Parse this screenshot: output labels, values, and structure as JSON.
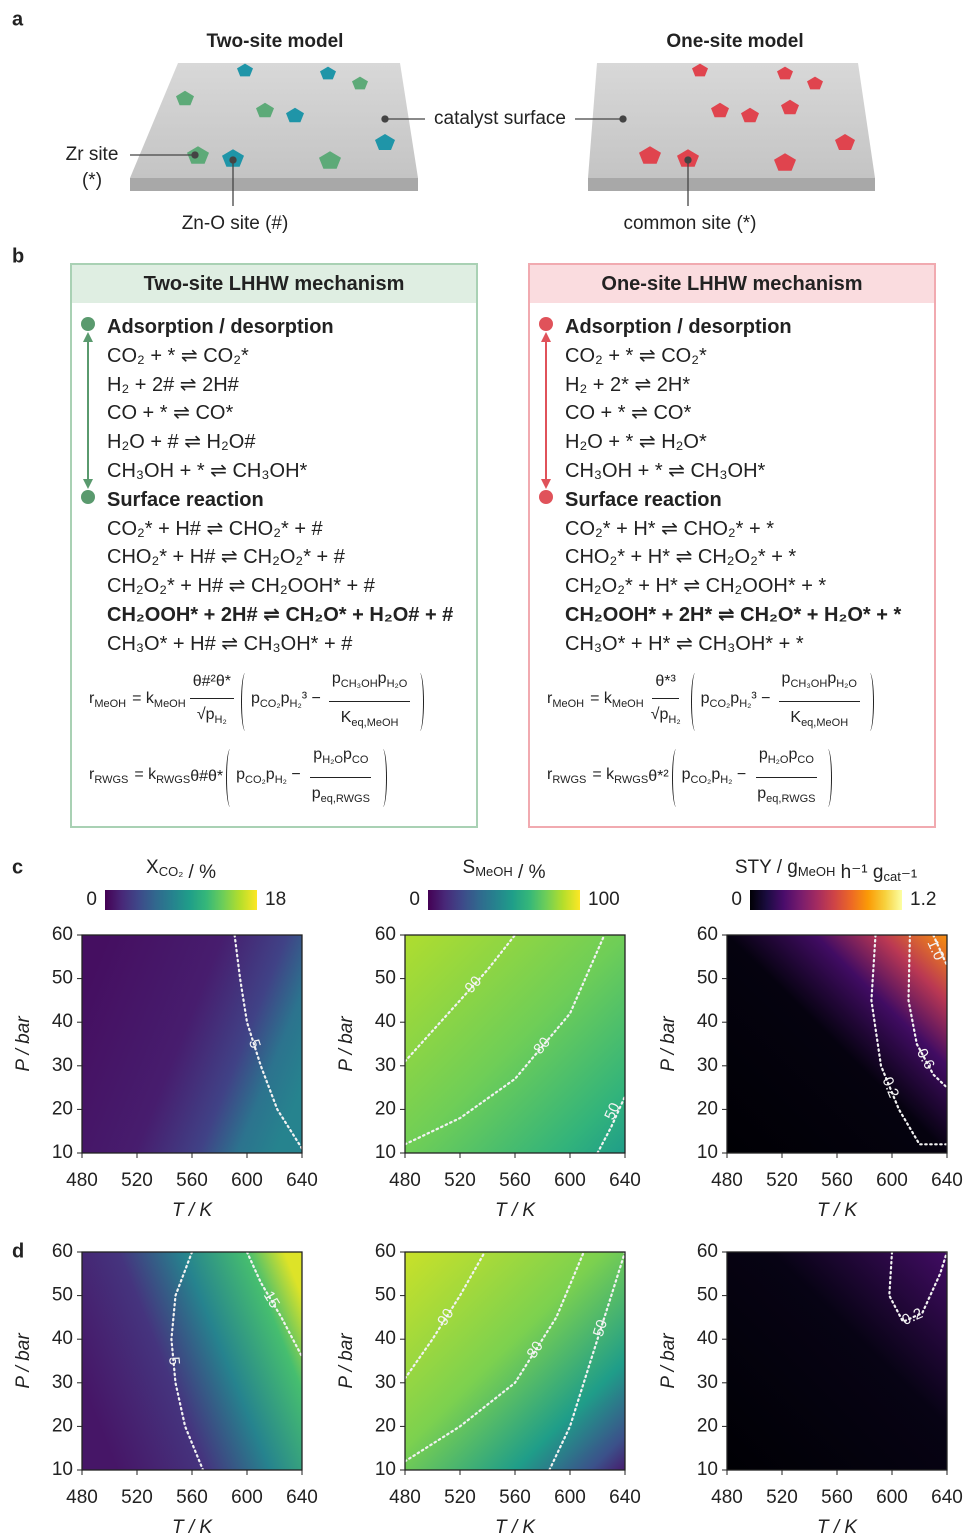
{
  "panel_labels": [
    "a",
    "b",
    "c",
    "d"
  ],
  "panel_a": {
    "left_title": "Two-site model",
    "right_title": "One-site model",
    "catalyst_surface": "catalyst surface",
    "zr_site": "Zr site",
    "zr_symbol": "(*)",
    "zno_site": "Zn-O site (#)",
    "common_site": "common site (*)"
  },
  "panel_b": {
    "boxes": [
      {
        "title": "Two-site LHHW mechanism",
        "color": "#5a9a6e",
        "header_color": "#dfeee2",
        "border_color": "#a9d1b4",
        "sections": [
          {
            "heading": "Adsorption / desorption",
            "equations": [
              "CO₂ + * ⇌ CO₂*",
              "H₂ + 2# ⇌ 2H#",
              "CO + * ⇌ CO*",
              "H₂O + # ⇌ H₂O#",
              "CH₃OH + * ⇌ CH₃OH*"
            ]
          },
          {
            "heading": "Surface reaction",
            "equations": [
              "CO₂* + H# ⇌ CHO₂* + #",
              "CHO₂* + H# ⇌ CH₂O₂* + #",
              "CH₂O₂* + H# ⇌ CH₂OOH* + #",
              "CH₂OOH* + 2H# ⇌ CH₂O* + H₂O# + #",
              "CH₃O* + H# ⇌ CH₃OH* + #"
            ],
            "bold_index": 3
          }
        ],
        "rates": [
          {
            "lhs": [
              [
                "r",
                "MeOH"
              ]
            ],
            "k": [
              [
                "= k",
                "MeOH"
              ]
            ],
            "num": [
              [
                "θ#²θ*"
              ]
            ],
            "den": [
              [
                "√p",
                "H₂"
              ]
            ],
            "term": [
              [
                "p",
                "CO₂"
              ],
              [
                "p",
                "H₂"
              ],
              [
                "³ −"
              ]
            ],
            "num2": [
              [
                "p",
                "CH₃OH"
              ],
              [
                "p",
                "H₂O"
              ]
            ],
            "den2": [
              [
                "K",
                "eq,MeOH"
              ]
            ]
          },
          {
            "lhs": [
              [
                "r",
                "RWGS"
              ]
            ],
            "k": [
              [
                "= k",
                "RWGS"
              ]
            ],
            "factor": [
              [
                "θ#θ*"
              ]
            ],
            "term": [
              [
                "p",
                "CO₂"
              ],
              [
                "p",
                "H₂"
              ],
              [
                " −"
              ]
            ],
            "num2": [
              [
                "p",
                "H₂O"
              ],
              [
                "p",
                "CO"
              ]
            ],
            "den2": [
              [
                "p",
                "eq,RWGS"
              ]
            ]
          }
        ]
      },
      {
        "title": "One-site LHHW mechanism",
        "color": "#e0525a",
        "header_color": "#fadcdf",
        "border_color": "#f1aab0",
        "sections": [
          {
            "heading": "Adsorption / desorption",
            "equations": [
              "CO₂ + * ⇌ CO₂*",
              "H₂ + 2* ⇌ 2H*",
              "CO + * ⇌ CO*",
              "H₂O + * ⇌ H₂O*",
              "CH₃OH + * ⇌ CH₃OH*"
            ]
          },
          {
            "heading": "Surface reaction",
            "equations": [
              "CO₂* + H* ⇌ CHO₂* + *",
              "CHO₂* + H* ⇌ CH₂O₂* + *",
              "CH₂O₂* + H* ⇌ CH₂OOH* + *",
              "CH₂OOH* + 2H* ⇌ CH₂O* + H₂O* + *",
              "CH₃O* + H* ⇌ CH₃OH* + *"
            ],
            "bold_index": 3
          }
        ],
        "rates": [
          {
            "lhs": [
              [
                "r",
                "MeOH"
              ]
            ],
            "k": [
              [
                "= k",
                "MeOH"
              ]
            ],
            "num": [
              [
                "θ*³"
              ]
            ],
            "den": [
              [
                "√p",
                "H₂"
              ]
            ],
            "term": [
              [
                "p",
                "CO₂"
              ],
              [
                "p",
                "H₂"
              ],
              [
                "³ −"
              ]
            ],
            "num2": [
              [
                "p",
                "CH₃OH"
              ],
              [
                "p",
                "H₂O"
              ]
            ],
            "den2": [
              [
                "K",
                "eq,MeOH"
              ]
            ]
          },
          {
            "lhs": [
              [
                "r",
                "RWGS"
              ]
            ],
            "k": [
              [
                "= k",
                "RWGS"
              ]
            ],
            "factor": [
              [
                "θ*²"
              ]
            ],
            "term": [
              [
                "p",
                "CO₂"
              ],
              [
                "p",
                "H₂"
              ],
              [
                " −"
              ]
            ],
            "num2": [
              [
                "p",
                "H₂O"
              ],
              [
                "p",
                "CO"
              ]
            ],
            "den2": [
              [
                "p",
                "eq,RWGS"
              ]
            ]
          }
        ]
      }
    ]
  },
  "chart_data": [
    {
      "type": "heatmap",
      "x_label": "T / K",
      "y_label": "P / bar",
      "xlim": [
        480,
        640
      ],
      "xticks": [
        480,
        520,
        560,
        600,
        640
      ],
      "ylim": [
        10,
        60
      ],
      "yticks": [
        10,
        20,
        30,
        40,
        50,
        60
      ],
      "colormap": [
        "#440154",
        "#482878",
        "#3e4989",
        "#31688e",
        "#26828e",
        "#1f9e89",
        "#35b779",
        "#6ece58",
        "#b5de2b",
        "#fde725"
      ],
      "colorbar": {
        "label": [
          [
            "X",
            "CO₂"
          ],
          [
            " / %"
          ]
        ],
        "lim": [
          0,
          18
        ],
        "ticks": [
          0,
          18
        ]
      },
      "contours": [
        {
          "level": 5,
          "x": [
            591,
            595,
            600,
            610,
            622,
            640
          ],
          "y": [
            60,
            50,
            40,
            30,
            20,
            11
          ]
        }
      ]
    },
    {
      "type": "heatmap",
      "x_label": "T / K",
      "y_label": "P / bar",
      "xlim": [
        480,
        640
      ],
      "xticks": [
        480,
        520,
        560,
        600,
        640
      ],
      "ylim": [
        10,
        60
      ],
      "yticks": [
        10,
        20,
        30,
        40,
        50,
        60
      ],
      "colormap": [
        "#440154",
        "#482878",
        "#3e4989",
        "#31688e",
        "#26828e",
        "#1f9e89",
        "#35b779",
        "#6ece58",
        "#b5de2b",
        "#fde725"
      ],
      "colorbar": {
        "label": [
          [
            "S",
            "MeOH"
          ],
          [
            " / %"
          ]
        ],
        "lim": [
          0,
          100
        ],
        "ticks": [
          0,
          100
        ]
      },
      "contours": [
        {
          "level": 90,
          "x": [
            480,
            500,
            520,
            540,
            560
          ],
          "y": [
            31,
            38,
            45,
            52,
            60
          ]
        },
        {
          "level": 80,
          "x": [
            480,
            520,
            560,
            600,
            625
          ],
          "y": [
            12,
            18,
            27,
            42,
            60
          ]
        },
        {
          "level": 50,
          "x": [
            620,
            630,
            640
          ],
          "y": [
            10,
            16,
            23
          ]
        }
      ]
    },
    {
      "type": "heatmap",
      "x_label": "T / K",
      "y_label": "P / bar",
      "xlim": [
        480,
        640
      ],
      "xticks": [
        480,
        520,
        560,
        600,
        640
      ],
      "ylim": [
        10,
        60
      ],
      "yticks": [
        10,
        20,
        30,
        40,
        50,
        60
      ],
      "colormap": [
        "#000004",
        "#1b0c41",
        "#4a0c6b",
        "#781c6d",
        "#a52c60",
        "#cf4446",
        "#ed6925",
        "#fb9b06",
        "#f7d13d",
        "#fcffa4"
      ],
      "colorbar": {
        "label": [
          [
            "STY / g",
            "MeOH"
          ],
          [
            " h⁻¹ g",
            "cat"
          ],
          [
            "⁻¹"
          ]
        ],
        "lim": [
          0,
          1.2
        ],
        "ticks": [
          0,
          1.2
        ]
      },
      "contours": [
        {
          "level": 0.2,
          "x": [
            588,
            585,
            592,
            605,
            620,
            640
          ],
          "y": [
            60,
            45,
            30,
            20,
            12,
            12
          ]
        },
        {
          "level": 0.6,
          "x": [
            613,
            612,
            618,
            630,
            640
          ],
          "y": [
            60,
            45,
            35,
            28,
            25
          ]
        },
        {
          "level": {
            "value": 1,
            "label": "1.0"
          },
          "x": [
            630,
            640
          ],
          "y": [
            60,
            53
          ]
        }
      ]
    },
    {
      "type": "heatmap",
      "x_label": "T / K",
      "y_label": "P / bar",
      "xlim": [
        480,
        640
      ],
      "xticks": [
        480,
        520,
        560,
        600,
        640
      ],
      "ylim": [
        10,
        60
      ],
      "yticks": [
        10,
        20,
        30,
        40,
        50,
        60
      ],
      "colormap": [
        "#440154",
        "#482878",
        "#3e4989",
        "#31688e",
        "#26828e",
        "#1f9e89",
        "#35b779",
        "#6ece58",
        "#b5de2b",
        "#fde725"
      ],
      "contours": [
        {
          "level": 5,
          "x": [
            560,
            548,
            545,
            548,
            555,
            568
          ],
          "y": [
            60,
            50,
            40,
            30,
            20,
            10
          ]
        },
        {
          "level": 15,
          "x": [
            600,
            610,
            625,
            640
          ],
          "y": [
            60,
            53,
            45,
            36
          ]
        }
      ]
    },
    {
      "type": "heatmap",
      "x_label": "T / K",
      "y_label": "P / bar",
      "xlim": [
        480,
        640
      ],
      "xticks": [
        480,
        520,
        560,
        600,
        640
      ],
      "ylim": [
        10,
        60
      ],
      "yticks": [
        10,
        20,
        30,
        40,
        50,
        60
      ],
      "colormap": [
        "#440154",
        "#482878",
        "#3e4989",
        "#31688e",
        "#26828e",
        "#1f9e89",
        "#35b779",
        "#6ece58",
        "#b5de2b",
        "#fde725"
      ],
      "contours": [
        {
          "level": 90,
          "x": [
            480,
            500,
            520,
            538
          ],
          "y": [
            31,
            40,
            50,
            60
          ]
        },
        {
          "level": 80,
          "x": [
            480,
            520,
            560,
            590,
            610
          ],
          "y": [
            12,
            20,
            30,
            45,
            60
          ]
        },
        {
          "level": 50,
          "x": [
            585,
            600,
            615,
            630,
            640
          ],
          "y": [
            10,
            20,
            35,
            50,
            60
          ]
        }
      ]
    },
    {
      "type": "heatmap",
      "x_label": "T / K",
      "y_label": "P / bar",
      "xlim": [
        480,
        640
      ],
      "xticks": [
        480,
        520,
        560,
        600,
        640
      ],
      "ylim": [
        10,
        60
      ],
      "yticks": [
        10,
        20,
        30,
        40,
        50,
        60
      ],
      "colormap": [
        "#000004",
        "#1b0c41",
        "#4a0c6b",
        "#781c6d",
        "#a52c60",
        "#cf4446",
        "#ed6925",
        "#fb9b06",
        "#f7d13d",
        "#fcffa4"
      ],
      "contours": [
        {
          "level": 0.2,
          "x": [
            600,
            598,
            608,
            622,
            635,
            640
          ],
          "y": [
            60,
            50,
            44,
            46,
            55,
            60
          ]
        }
      ]
    }
  ]
}
